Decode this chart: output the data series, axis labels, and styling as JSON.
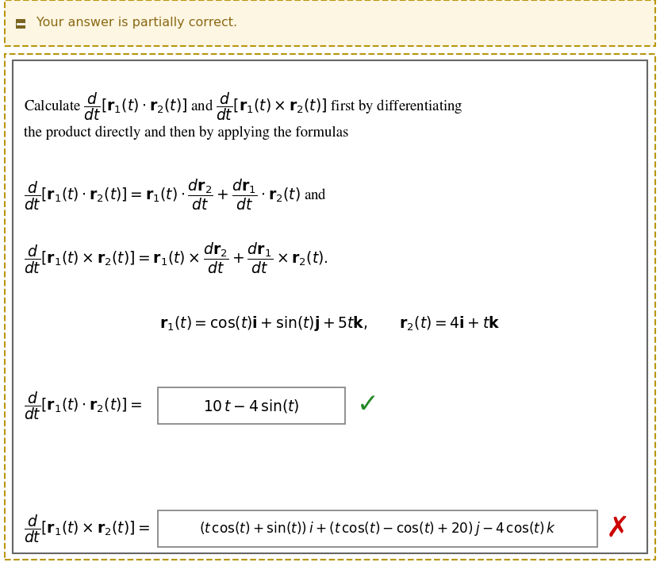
{
  "banner_text": "Your answer is partially correct.",
  "banner_bg": "#fdf6e3",
  "banner_border": "#b8960c",
  "main_bg": "#ffffff",
  "outer_border_color": "#b8960c",
  "inner_border_color": "#666666",
  "check_green": "#228822",
  "cross_red": "#cc0000",
  "box_border": "#888888",
  "page_bg": "#ffffff",
  "font_size": 13.5,
  "banner_font_size": 11.5
}
